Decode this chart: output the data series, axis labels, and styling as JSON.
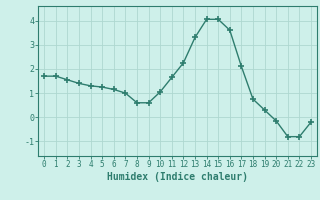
{
  "x": [
    0,
    1,
    2,
    3,
    4,
    5,
    6,
    7,
    8,
    9,
    10,
    11,
    12,
    13,
    14,
    15,
    16,
    17,
    18,
    19,
    20,
    21,
    22,
    23
  ],
  "y": [
    1.7,
    1.7,
    1.55,
    1.4,
    1.3,
    1.25,
    1.15,
    1.0,
    0.6,
    0.6,
    1.05,
    1.65,
    2.25,
    3.3,
    4.05,
    4.05,
    3.6,
    2.1,
    0.75,
    0.3,
    -0.15,
    -0.8,
    -0.8,
    -0.2
  ],
  "line_color": "#2e7d6e",
  "marker": "+",
  "marker_size": 4,
  "marker_lw": 1.2,
  "bg_color": "#cef0ea",
  "grid_color": "#aed8d0",
  "xlabel": "Humidex (Indice chaleur)",
  "xlabel_fontsize": 7,
  "ylim": [
    -1.6,
    4.6
  ],
  "xlim": [
    -0.5,
    23.5
  ],
  "yticks": [
    -1,
    0,
    1,
    2,
    3,
    4
  ],
  "xticks": [
    0,
    1,
    2,
    3,
    4,
    5,
    6,
    7,
    8,
    9,
    10,
    11,
    12,
    13,
    14,
    15,
    16,
    17,
    18,
    19,
    20,
    21,
    22,
    23
  ],
  "tick_fontsize": 5.5,
  "line_width": 1.0,
  "spine_color": "#2e7d6e",
  "text_color": "#2e7d6e"
}
